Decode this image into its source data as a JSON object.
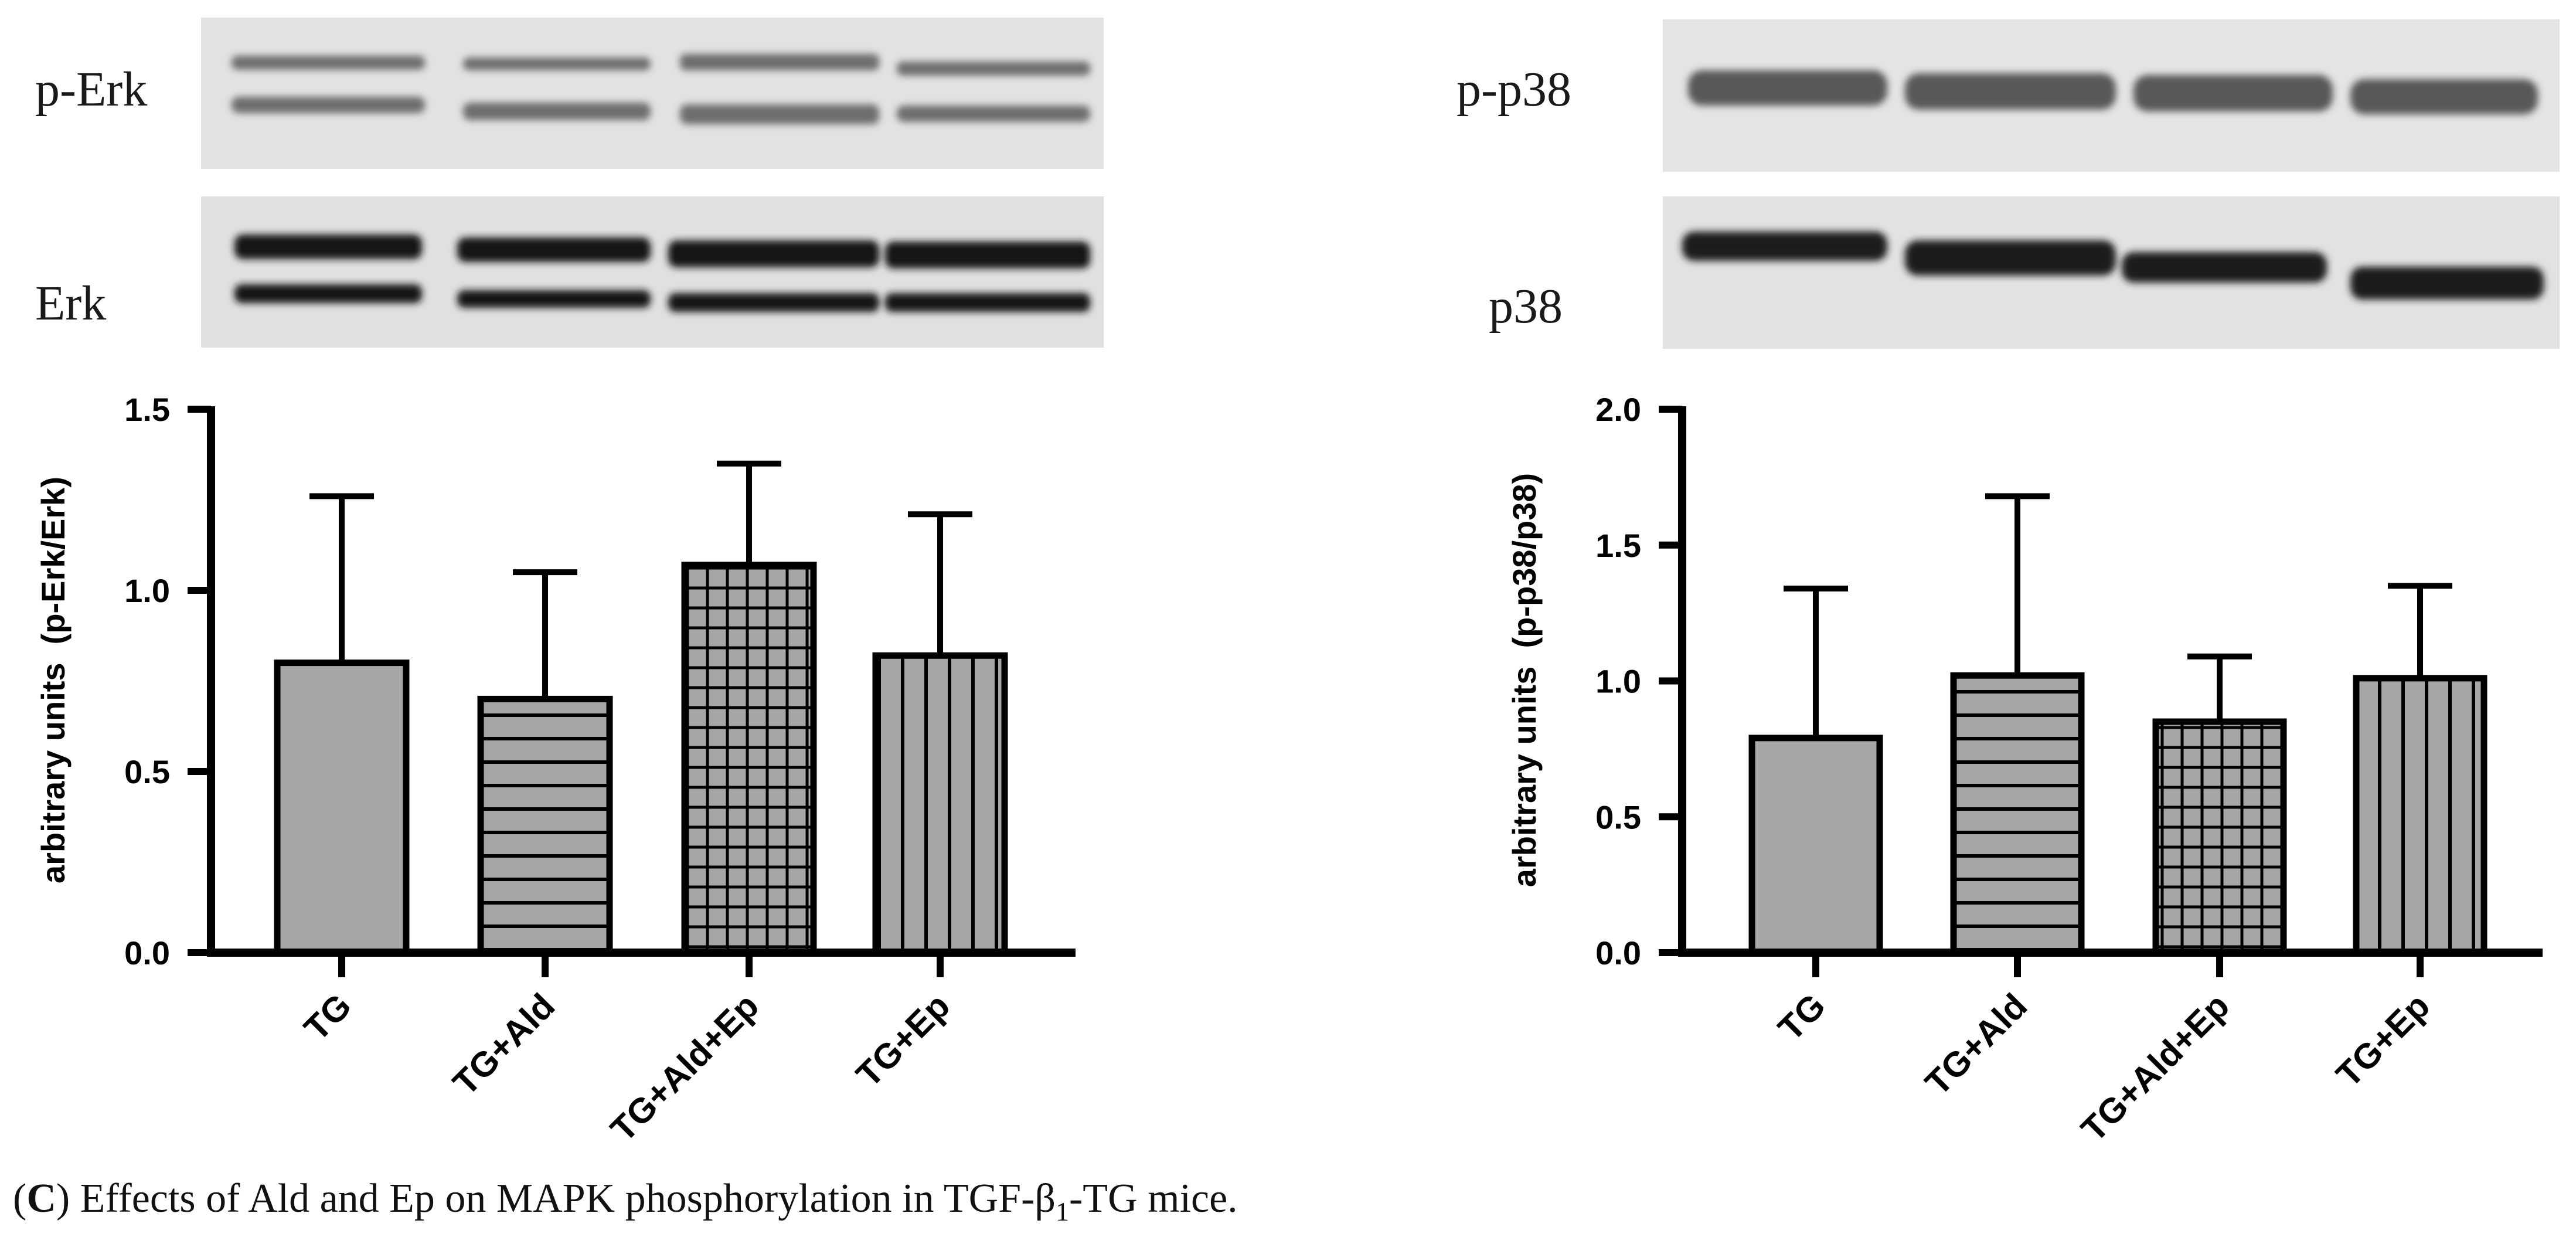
{
  "blots": {
    "left": {
      "top_label": "p-Erk",
      "bottom_label": "Erk"
    },
    "right": {
      "top_label": "p-p38",
      "bottom_label": "p38"
    }
  },
  "caption": {
    "panel": "C",
    "text_before": ") Effects of Ald and Ep on MAPK phosphorylation in TGF-β",
    "subscript": "1",
    "text_after": "-TG mice."
  },
  "colors": {
    "bar_fill": "#a6a6a6",
    "axis": "#000000"
  },
  "chart_data": [
    {
      "type": "bar",
      "title": "",
      "xlabel": "",
      "ylabel": "arbitrary units  (p-Erk/Erk)",
      "categories": [
        "TG",
        "TG+Ald",
        "TG+Ald+Ep",
        "TG+Ep"
      ],
      "values": [
        0.8,
        0.7,
        1.07,
        0.82
      ],
      "error": [
        0.46,
        0.35,
        0.28,
        0.39
      ],
      "patterns": [
        "solid",
        "horizontal",
        "grid",
        "vertical"
      ],
      "ylim": [
        0,
        1.5
      ],
      "yticks": [
        "0.0",
        "0.5",
        "1.0",
        "1.5"
      ],
      "grid": false
    },
    {
      "type": "bar",
      "title": "",
      "xlabel": "",
      "ylabel": "arbitrary units  (p-p38/p38)",
      "categories": [
        "TG",
        "TG+Ald",
        "TG+Ald+Ep",
        "TG+Ep"
      ],
      "values": [
        0.79,
        1.02,
        0.85,
        1.01
      ],
      "error": [
        0.55,
        0.66,
        0.24,
        0.34
      ],
      "patterns": [
        "solid",
        "horizontal",
        "grid",
        "vertical"
      ],
      "ylim": [
        0,
        2.0
      ],
      "yticks": [
        "0.0",
        "0.5",
        "1.0",
        "1.5",
        "2.0"
      ],
      "grid": false
    }
  ]
}
